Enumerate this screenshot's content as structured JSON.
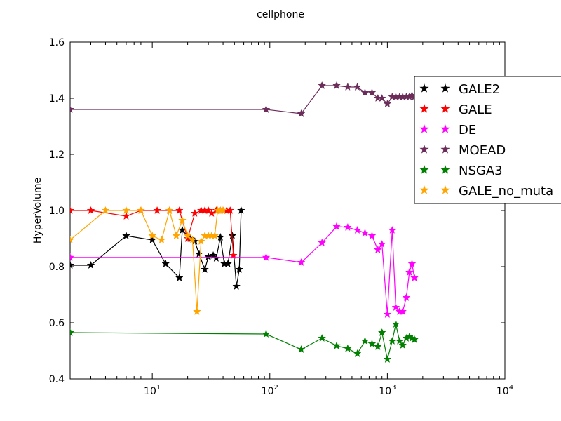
{
  "chart_data": {
    "type": "line",
    "title": "cellphone",
    "xlabel": "",
    "ylabel": "HyperVolume",
    "xscale": "log",
    "xlim": [
      2,
      10000
    ],
    "ylim": [
      0.4,
      1.6
    ],
    "x_ticks": [
      {
        "value": 10,
        "base": "10",
        "exp": "1"
      },
      {
        "value": 100,
        "base": "10",
        "exp": "2"
      },
      {
        "value": 1000,
        "base": "10",
        "exp": "3"
      },
      {
        "value": 10000,
        "base": "10",
        "exp": "4"
      }
    ],
    "y_ticks": [
      0.4,
      0.6,
      0.8,
      1.0,
      1.2,
      1.4,
      1.6
    ],
    "y_tick_labels": [
      "0.4",
      "0.6",
      "0.8",
      "1.0",
      "1.2",
      "1.4",
      "1.6"
    ],
    "grid": false,
    "legend_position": "top-right",
    "marker": "star",
    "series": [
      {
        "name": "GALE2",
        "color": "#000000",
        "x": [
          2,
          3,
          6,
          10,
          13,
          17,
          18,
          21,
          23,
          25,
          28,
          30,
          33,
          35,
          38,
          41,
          44,
          48,
          52,
          55,
          57
        ],
        "y": [
          0.805,
          0.805,
          0.91,
          0.895,
          0.81,
          0.76,
          0.93,
          0.9,
          0.89,
          0.845,
          0.79,
          0.835,
          0.84,
          0.83,
          0.905,
          0.81,
          0.81,
          0.91,
          0.73,
          0.79,
          1.0
        ]
      },
      {
        "name": "GALE",
        "color": "#ff0000",
        "x": [
          2,
          3,
          6,
          8,
          11,
          14,
          17,
          20,
          23,
          26,
          28,
          30,
          32,
          35,
          38,
          40,
          43,
          46,
          49
        ],
        "y": [
          1.0,
          1.0,
          0.98,
          1.0,
          1.0,
          1.0,
          1.0,
          0.9,
          0.99,
          1.0,
          1.0,
          1.0,
          0.99,
          1.0,
          1.0,
          1.0,
          1.0,
          1.0,
          0.84
        ]
      },
      {
        "name": "DE",
        "color": "#ff00ff",
        "x": [
          2,
          93,
          185,
          278,
          370,
          460,
          555,
          645,
          740,
          830,
          900,
          1000,
          1100,
          1180,
          1270,
          1350,
          1450,
          1540,
          1620,
          1700
        ],
        "y": [
          0.833,
          0.833,
          0.815,
          0.885,
          0.943,
          0.94,
          0.93,
          0.92,
          0.91,
          0.86,
          0.88,
          0.63,
          0.93,
          0.655,
          0.64,
          0.64,
          0.69,
          0.78,
          0.81,
          0.76
        ]
      },
      {
        "name": "MOEAD",
        "color": "#6b2c5a",
        "x": [
          2,
          93,
          185,
          278,
          370,
          460,
          555,
          645,
          740,
          830,
          900,
          1000,
          1100,
          1180,
          1270,
          1350,
          1450,
          1540,
          1620,
          1700
        ],
        "y": [
          1.36,
          1.36,
          1.345,
          1.445,
          1.445,
          1.44,
          1.44,
          1.42,
          1.42,
          1.4,
          1.4,
          1.38,
          1.405,
          1.405,
          1.405,
          1.405,
          1.405,
          1.405,
          1.41,
          1.405
        ]
      },
      {
        "name": "NSGA3",
        "color": "#007f00",
        "x": [
          2,
          93,
          185,
          278,
          370,
          460,
          555,
          645,
          740,
          830,
          900,
          1000,
          1100,
          1180,
          1270,
          1350,
          1450,
          1540,
          1620,
          1700
        ],
        "y": [
          0.565,
          0.56,
          0.505,
          0.545,
          0.518,
          0.508,
          0.49,
          0.535,
          0.525,
          0.515,
          0.565,
          0.47,
          0.535,
          0.595,
          0.535,
          0.52,
          0.545,
          0.55,
          0.545,
          0.54
        ]
      },
      {
        "name": "GALE_no_muta",
        "color": "#ffa500",
        "x": [
          2,
          4,
          6,
          8,
          10,
          12,
          14,
          16,
          18,
          20,
          22,
          24,
          26,
          28,
          30,
          32,
          34,
          36,
          38,
          40
        ],
        "y": [
          0.895,
          1.0,
          1.0,
          1.0,
          0.91,
          0.895,
          1.0,
          0.91,
          0.965,
          0.91,
          0.895,
          0.64,
          0.89,
          0.91,
          0.91,
          0.91,
          0.91,
          1.0,
          1.0,
          1.0
        ]
      }
    ]
  }
}
